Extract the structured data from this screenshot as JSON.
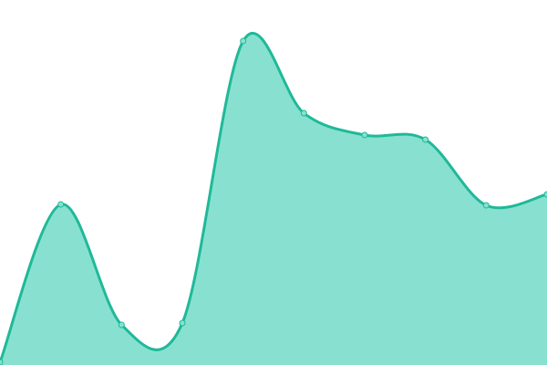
{
  "chart_data": {
    "type": "area",
    "values": [
      3,
      176,
      44,
      46,
      355,
      276,
      252,
      247,
      175,
      187
    ],
    "ylim": [
      0,
      400
    ],
    "color": "#1fb999",
    "fill": "#88e1d0",
    "markers": true
  }
}
